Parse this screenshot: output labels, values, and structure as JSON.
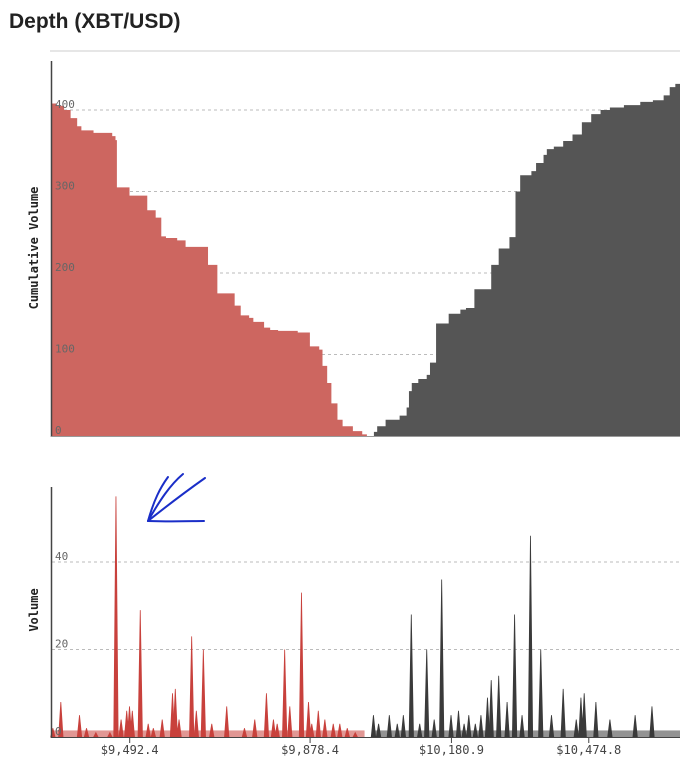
{
  "title": "Depth (XBT/USD)",
  "colors": {
    "bid": "#cd6660",
    "bid_spike": "#c8413c",
    "ask": "#555555",
    "ask_spike": "#3a3a3a",
    "annotation": "#1a2ec8",
    "grid": "#bbbbbb",
    "axis": "#444444"
  },
  "chart_data": [
    {
      "type": "area",
      "title": "Depth (XBT/USD)",
      "ylabel": "Cumulative Volume",
      "xlim": [
        9324,
        10670
      ],
      "ylim": [
        0,
        420
      ],
      "yticks": [
        0,
        100,
        200,
        300,
        400
      ],
      "grid": true,
      "series": [
        {
          "side": "bid",
          "x": [
            9324,
            9336,
            9352,
            9366,
            9380,
            9389,
            9415,
            9455,
            9462,
            9465,
            9492,
            9530,
            9548,
            9560,
            9570,
            9594,
            9612,
            9660,
            9680,
            9717,
            9730,
            9748,
            9757,
            9780,
            9793,
            9810,
            9852,
            9878,
            9898,
            9905,
            9915,
            9924,
            9937,
            9948,
            9970,
            9990,
            10000
          ],
          "values": [
            408,
            405,
            400,
            390,
            380,
            375,
            372,
            368,
            363,
            305,
            295,
            277,
            268,
            245,
            243,
            240,
            232,
            210,
            175,
            160,
            148,
            145,
            140,
            133,
            130,
            129,
            127,
            110,
            106,
            86,
            65,
            40,
            20,
            12,
            6,
            2,
            0
          ]
        },
        {
          "side": "ask",
          "x": [
            10015,
            10022,
            10040,
            10070,
            10085,
            10090,
            10096,
            10110,
            10128,
            10135,
            10148,
            10175,
            10200,
            10212,
            10230,
            10266,
            10282,
            10305,
            10318,
            10328,
            10352,
            10362,
            10378,
            10385,
            10400,
            10420,
            10440,
            10460,
            10480,
            10500,
            10520,
            10550,
            10585,
            10612,
            10635,
            10648,
            10660,
            10670
          ],
          "values": [
            5,
            12,
            20,
            25,
            35,
            55,
            65,
            70,
            75,
            90,
            138,
            150,
            155,
            157,
            180,
            210,
            230,
            244,
            300,
            320,
            325,
            335,
            345,
            352,
            355,
            362,
            370,
            385,
            395,
            400,
            403,
            406,
            410,
            412,
            418,
            428,
            432,
            434
          ]
        }
      ]
    },
    {
      "type": "bar",
      "ylabel": "Volume",
      "xlim": [
        9324,
        10670
      ],
      "ylim": [
        0,
        55
      ],
      "yticks": [
        0,
        20,
        40
      ],
      "grid": true,
      "xticks": [
        {
          "value": 9492.4,
          "label": "$9,492.4"
        },
        {
          "value": 9878.4,
          "label": "$9,878.4"
        },
        {
          "value": 10180.9,
          "label": "$10,180.9"
        },
        {
          "value": 10474.8,
          "label": "$10,474.8"
        }
      ],
      "series": [
        {
          "side": "bid",
          "x": [
            9328,
            9345,
            9385,
            9400,
            9420,
            9450,
            9463,
            9474,
            9486,
            9492,
            9498,
            9515,
            9532,
            9543,
            9562,
            9584,
            9590,
            9598,
            9625,
            9635,
            9650,
            9668,
            9700,
            9738,
            9760,
            9785,
            9800,
            9808,
            9824,
            9835,
            9860,
            9875,
            9882,
            9896,
            9910,
            9928,
            9942,
            9958,
            9975
          ],
          "values": [
            2,
            8,
            5,
            2,
            1,
            1,
            55,
            4,
            6,
            7,
            6,
            29,
            3,
            2,
            4,
            10,
            11,
            4,
            23,
            6,
            20,
            3,
            7,
            2,
            4,
            10,
            4,
            3,
            20,
            7,
            33,
            8,
            3,
            6,
            4,
            3,
            3,
            2,
            1
          ]
        },
        {
          "side": "ask",
          "x": [
            10014,
            10025,
            10048,
            10065,
            10078,
            10095,
            10113,
            10128,
            10144,
            10160,
            10180,
            10196,
            10208,
            10218,
            10232,
            10244,
            10258,
            10266,
            10282,
            10300,
            10316,
            10332,
            10350,
            10372,
            10395,
            10420,
            10448,
            10458,
            10465,
            10490,
            10520,
            10574,
            10610
          ],
          "values": [
            5,
            3,
            5,
            3,
            5,
            28,
            3,
            20,
            4,
            36,
            5,
            6,
            3,
            5,
            3,
            5,
            9,
            13,
            14,
            8,
            28,
            5,
            46,
            20,
            5,
            11,
            4,
            9,
            10,
            8,
            4,
            5,
            7
          ]
        }
      ]
    }
  ]
}
